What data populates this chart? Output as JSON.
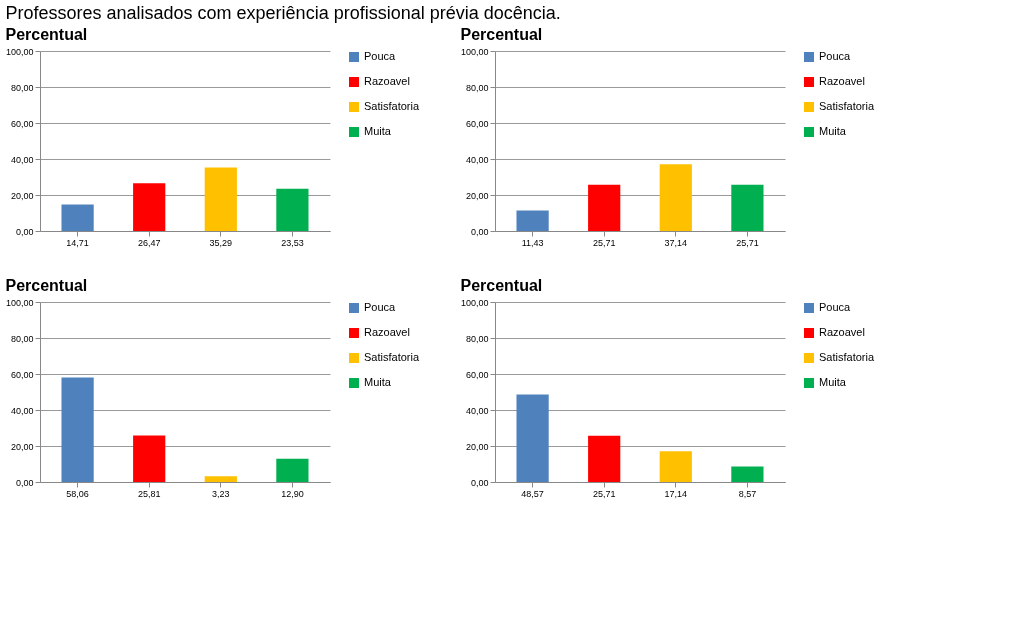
{
  "chart_data": [
    {
      "type": "bar",
      "title": "Percentual",
      "annotations": [
        "Professores analisados com experiência profissional prévia docência."
      ],
      "categories": [
        null,
        null,
        null,
        null
      ],
      "legend": "right",
      "grid": "y",
      "ylim": [
        0,
        100
      ],
      "yticks": [
        {
          "value": 0,
          "label": "0,00"
        },
        {
          "value": 20,
          "label": "20,00"
        },
        {
          "value": 40,
          "label": "40,00"
        },
        {
          "value": 60,
          "label": "60,00"
        },
        {
          "value": 80,
          "label": "80,00"
        },
        {
          "value": 100,
          "label": "100,00"
        }
      ],
      "series": [
        {
          "name": "Pouca",
          "color": "#4f81bd",
          "values": [
            14.71,
            null,
            null,
            null
          ],
          "value_labels": [
            "14,71",
            null,
            null,
            null
          ]
        },
        {
          "name": "Razoavel",
          "color": "#ff0000",
          "values": [
            null,
            26.47,
            null,
            null
          ],
          "value_labels": [
            null,
            "26,47",
            null,
            null
          ]
        },
        {
          "name": "Satisfatoria",
          "color": "#ffc000",
          "values": [
            null,
            null,
            35.29,
            null
          ],
          "value_labels": [
            null,
            null,
            "35,29",
            null
          ]
        },
        {
          "name": "Muita",
          "color": "#00b050",
          "values": [
            null,
            null,
            null,
            23.53
          ],
          "value_labels": [
            null,
            null,
            null,
            "23,53"
          ]
        }
      ]
    },
    {
      "type": "bar",
      "title": "Percentual",
      "categories": [
        null,
        null,
        null,
        null
      ],
      "legend": "right",
      "grid": "y",
      "ylim": [
        0,
        100
      ],
      "yticks": [
        {
          "value": 0,
          "label": "0,00"
        },
        {
          "value": 20,
          "label": "20,00"
        },
        {
          "value": 40,
          "label": "40,00"
        },
        {
          "value": 60,
          "label": "60,00"
        },
        {
          "value": 80,
          "label": "80,00"
        },
        {
          "value": 100,
          "label": "100,00"
        }
      ],
      "series": [
        {
          "name": "Pouca",
          "color": "#4f81bd",
          "values": [
            11.43,
            null,
            null,
            null
          ],
          "value_labels": [
            "11,43",
            null,
            null,
            null
          ]
        },
        {
          "name": "Razoavel",
          "color": "#ff0000",
          "values": [
            null,
            25.71,
            null,
            null
          ],
          "value_labels": [
            null,
            "25,71",
            null,
            null
          ]
        },
        {
          "name": "Satisfatoria",
          "color": "#ffc000",
          "values": [
            null,
            null,
            37.14,
            null
          ],
          "value_labels": [
            null,
            null,
            "37,14",
            null
          ]
        },
        {
          "name": "Muita",
          "color": "#00b050",
          "values": [
            null,
            null,
            null,
            25.71
          ],
          "value_labels": [
            null,
            null,
            null,
            "25,71"
          ]
        }
      ]
    },
    {
      "type": "bar",
      "title": "Percentual",
      "categories": [
        null,
        null,
        null,
        null
      ],
      "legend": "right",
      "grid": "y",
      "ylim": [
        0,
        100
      ],
      "yticks": [
        {
          "value": 0,
          "label": "0,00"
        },
        {
          "value": 20,
          "label": "20,00"
        },
        {
          "value": 40,
          "label": "40,00"
        },
        {
          "value": 60,
          "label": "60,00"
        },
        {
          "value": 80,
          "label": "80,00"
        },
        {
          "value": 100,
          "label": "100,00"
        }
      ],
      "series": [
        {
          "name": "Pouca",
          "color": "#4f81bd",
          "values": [
            58.06,
            null,
            null,
            null
          ],
          "value_labels": [
            "58,06",
            null,
            null,
            null
          ]
        },
        {
          "name": "Razoavel",
          "color": "#ff0000",
          "values": [
            null,
            25.81,
            null,
            null
          ],
          "value_labels": [
            null,
            "25,81",
            null,
            null
          ]
        },
        {
          "name": "Satisfatoria",
          "color": "#ffc000",
          "values": [
            null,
            null,
            3.23,
            null
          ],
          "value_labels": [
            null,
            null,
            "3,23",
            null
          ]
        },
        {
          "name": "Muita",
          "color": "#00b050",
          "values": [
            null,
            null,
            null,
            12.9
          ],
          "value_labels": [
            null,
            null,
            null,
            "12,90"
          ]
        }
      ]
    },
    {
      "type": "bar",
      "title": "Percentual",
      "categories": [
        null,
        null,
        null,
        null
      ],
      "legend": "right",
      "grid": "y",
      "ylim": [
        0,
        100
      ],
      "yticks": [
        {
          "value": 0,
          "label": "0,00"
        },
        {
          "value": 20,
          "label": "20,00"
        },
        {
          "value": 40,
          "label": "40,00"
        },
        {
          "value": 60,
          "label": "60,00"
        },
        {
          "value": 80,
          "label": "80,00"
        },
        {
          "value": 100,
          "label": "100,00"
        }
      ],
      "series": [
        {
          "name": "Pouca",
          "color": "#4f81bd",
          "values": [
            48.57,
            null,
            null,
            null
          ],
          "value_labels": [
            "48,57",
            null,
            null,
            null
          ]
        },
        {
          "name": "Razoavel",
          "color": "#ff0000",
          "values": [
            null,
            25.71,
            null,
            null
          ],
          "value_labels": [
            null,
            "25,71",
            null,
            null
          ]
        },
        {
          "name": "Satisfatoria",
          "color": "#ffc000",
          "values": [
            null,
            null,
            17.14,
            null
          ],
          "value_labels": [
            null,
            null,
            "17,14",
            null
          ]
        },
        {
          "name": "Muita",
          "color": "#00b050",
          "values": [
            null,
            null,
            null,
            8.57
          ],
          "value_labels": [
            null,
            null,
            null,
            "8,57"
          ]
        }
      ]
    }
  ]
}
